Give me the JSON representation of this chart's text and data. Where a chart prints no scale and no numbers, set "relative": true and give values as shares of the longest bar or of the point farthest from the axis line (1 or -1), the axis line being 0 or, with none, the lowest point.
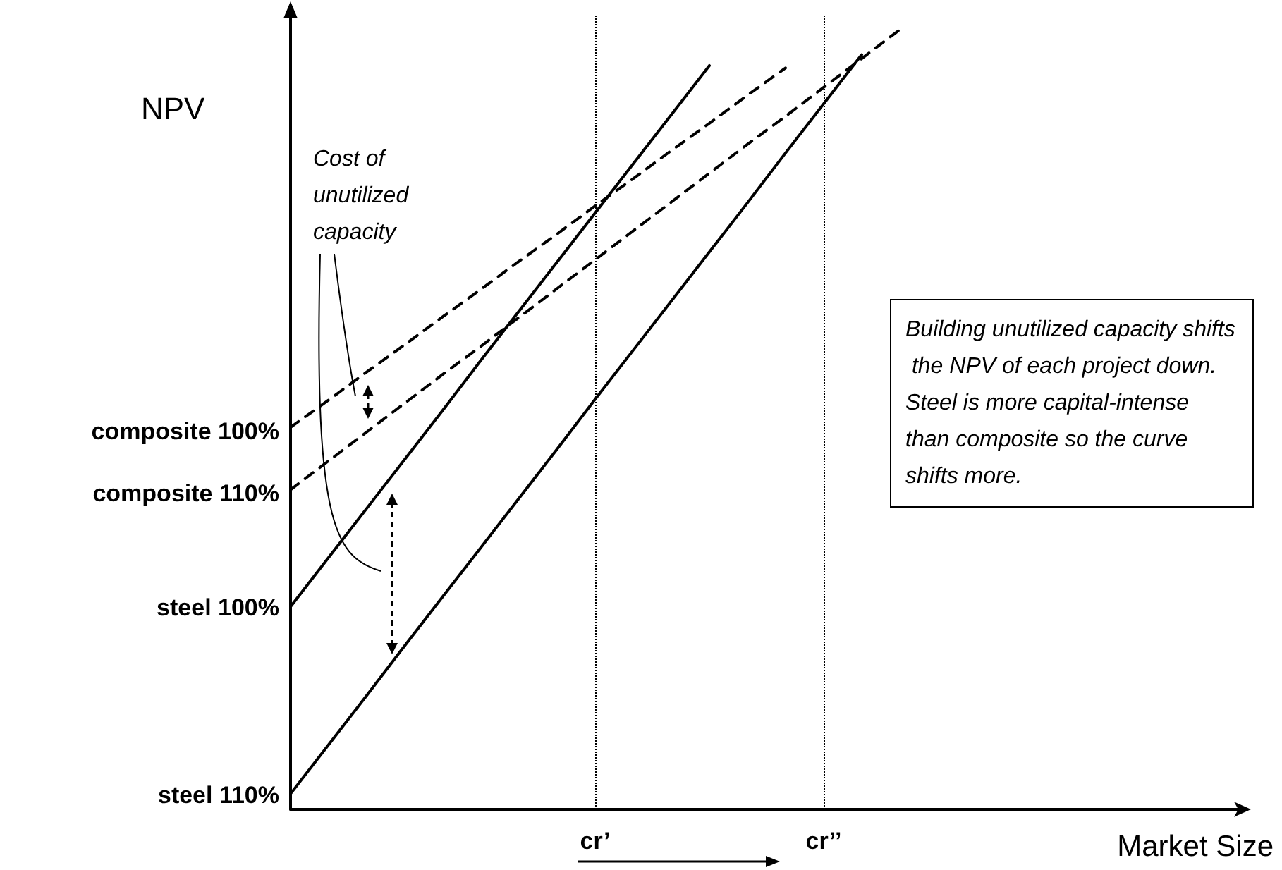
{
  "chart_data": {
    "type": "line",
    "relative": true,
    "xlabel": "Market Size",
    "ylabel": "NPV",
    "tick_labels": "x",
    "categories": [
      null,
      null,
      null,
      null,
      null,
      null,
      null,
      null,
      "cr’",
      null,
      null,
      null,
      null,
      null,
      "cr’’",
      null,
      null,
      null,
      null,
      null,
      null,
      null,
      null,
      null,
      null,
      null
    ],
    "grid": false,
    "marker": "none",
    "series": [
      {
        "color": "#000000",
        "line_style": "solid",
        "values": [
          0.26,
          0.323,
          0.386,
          0.449,
          0.512,
          0.576,
          0.639,
          0.702,
          0.765,
          0.828,
          0.891,
          0.954,
          null,
          null,
          null,
          null,
          null,
          null,
          null,
          null,
          null,
          null,
          null,
          null,
          null,
          null
        ]
      },
      {
        "color": "#000000",
        "line_style": "solid",
        "values": [
          0.02,
          0.083,
          0.146,
          0.21,
          0.273,
          0.336,
          0.399,
          0.462,
          0.526,
          0.589,
          0.652,
          0.715,
          0.778,
          0.842,
          0.905,
          0.968,
          null,
          null,
          null,
          null,
          null,
          null,
          null,
          null,
          null,
          null
        ]
      },
      {
        "color": "#000000",
        "line_style": "dashed",
        "values": [
          0.49,
          0.525,
          0.561,
          0.596,
          0.632,
          0.667,
          0.703,
          0.738,
          0.774,
          0.809,
          0.845,
          0.88,
          0.916,
          0.951,
          null,
          null,
          null,
          null,
          null,
          null,
          null,
          null,
          null,
          null,
          null,
          null
        ]
      },
      {
        "color": "#000000",
        "line_style": "dashed",
        "values": [
          0.41,
          0.447,
          0.484,
          0.521,
          0.558,
          0.594,
          0.631,
          0.668,
          0.705,
          0.742,
          0.779,
          0.816,
          0.853,
          0.889,
          0.926,
          0.963,
          1.0,
          null,
          null,
          null,
          null,
          null,
          null,
          null,
          null,
          null
        ]
      }
    ],
    "ref_lines": [
      {
        "axis": "x",
        "value": "cr’",
        "line_style": "dotted"
      },
      {
        "axis": "x",
        "value": "cr’’",
        "line_style": "dotted"
      }
    ],
    "annotations": [
      "composite 100%",
      "composite 110%",
      "steel 100%",
      "steel 110%",
      "Cost of unutilized capacity",
      "Building unutilized capacity shifts the NPV of each project down. Steel is more capital-intense than composite so the curve shifts more."
    ]
  }
}
